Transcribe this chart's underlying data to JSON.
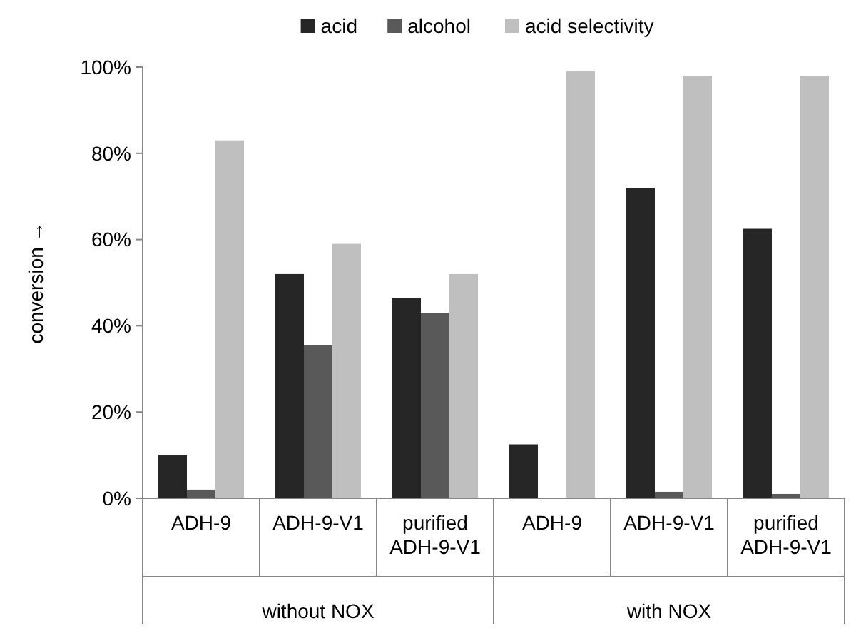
{
  "chart_data": {
    "type": "bar",
    "ylabel": "conversion →",
    "categories": [
      "ADH-9",
      "ADH-9-V1",
      "purified ADH-9-V1",
      "ADH-9",
      "ADH-9-V1",
      "purified ADH-9-V1"
    ],
    "series": [
      {
        "name": "acid",
        "color": "#262626",
        "values": [
          10,
          52,
          46.5,
          12.5,
          72,
          62.5
        ]
      },
      {
        "name": "alcohol",
        "color": "#595959",
        "values": [
          2,
          35.5,
          43,
          0,
          1.5,
          1
        ]
      },
      {
        "name": "acid selectivity",
        "color": "#bfbfbf",
        "values": [
          83,
          59,
          52,
          99,
          98,
          98
        ]
      }
    ],
    "ylim": [
      0,
      100
    ],
    "yticks": [
      {
        "value": 0,
        "label": "0%"
      },
      {
        "value": 20,
        "label": "20%"
      },
      {
        "value": 40,
        "label": "40%"
      },
      {
        "value": 60,
        "label": "60%"
      },
      {
        "value": 80,
        "label": "80%"
      },
      {
        "value": 100,
        "label": "100%"
      }
    ],
    "annotations": [
      "without NOX",
      "with NOX"
    ],
    "legend": "top",
    "grid": false
  }
}
